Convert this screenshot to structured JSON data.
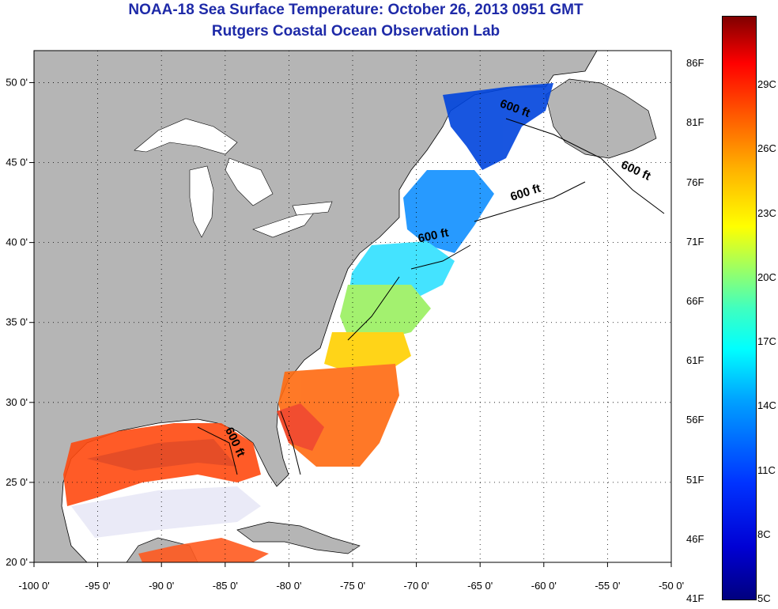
{
  "title": {
    "line1": "NOAA-18 Sea Surface Temperature:  October 26, 2013 0951 GMT",
    "line2": "Rutgers Coastal Ocean Observation Lab"
  },
  "map": {
    "lon_range": [
      -100,
      -50
    ],
    "lat_range": [
      20,
      52
    ],
    "x_ticks": [
      {
        "value": -100,
        "label": "-100 0'"
      },
      {
        "value": -95,
        "label": "-95 0'"
      },
      {
        "value": -90,
        "label": "-90 0'"
      },
      {
        "value": -85,
        "label": "-85 0'"
      },
      {
        "value": -80,
        "label": "-80 0'"
      },
      {
        "value": -75,
        "label": "-75 0'"
      },
      {
        "value": -70,
        "label": "-70 0'"
      },
      {
        "value": -65,
        "label": "-65 0'"
      },
      {
        "value": -60,
        "label": "-60 0'"
      },
      {
        "value": -55,
        "label": "-55 0'"
      },
      {
        "value": -50,
        "label": "-50 0'"
      }
    ],
    "y_ticks": [
      {
        "value": 20,
        "label": "20 0'"
      },
      {
        "value": 25,
        "label": "25 0'"
      },
      {
        "value": 30,
        "label": "30 0'"
      },
      {
        "value": 35,
        "label": "35 0'"
      },
      {
        "value": 40,
        "label": "40 0'"
      },
      {
        "value": 45,
        "label": "45 0'"
      },
      {
        "value": 50,
        "label": "50 0'"
      }
    ],
    "contour_labels": [
      {
        "text": "600 ft",
        "lon": -63.5,
        "lat": 48.5,
        "rot": 20
      },
      {
        "text": "600 ft",
        "lon": -54,
        "lat": 44.7,
        "rot": 25
      },
      {
        "text": "600 ft",
        "lon": -62.5,
        "lat": 42.6,
        "rot": -18
      },
      {
        "text": "600 ft",
        "lon": -69.8,
        "lat": 40,
        "rot": -12
      },
      {
        "text": "600 ft",
        "lon": -85,
        "lat": 28.3,
        "rot": 65
      }
    ],
    "colors": {
      "land": "#b5b5b5",
      "ocean": "#ffffff",
      "title": "#1e2aa8"
    }
  },
  "colorbar": {
    "f_labels": [
      "86F",
      "81F",
      "76F",
      "71F",
      "66F",
      "61F",
      "56F",
      "51F",
      "46F",
      "41F"
    ],
    "c_labels": [
      "29C",
      "26C",
      "23C",
      "20C",
      "17C",
      "14C",
      "11C",
      "8C",
      "5C"
    ]
  }
}
